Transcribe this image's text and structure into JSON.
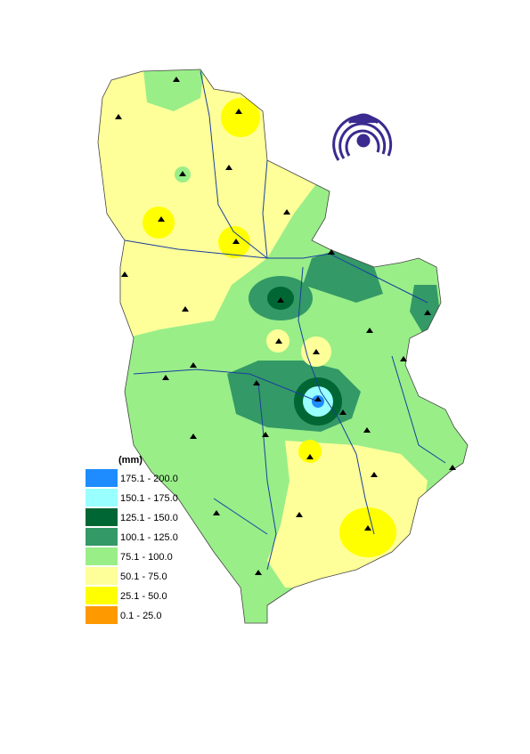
{
  "legend": {
    "title": "(mm)",
    "items": [
      {
        "label": "175.1 - 200.0",
        "color": "#1e8cff"
      },
      {
        "label": "150.1 - 175.0",
        "color": "#99ffff"
      },
      {
        "label": "125.1 - 150.0",
        "color": "#006633"
      },
      {
        "label": "100.1 - 125.0",
        "color": "#339966"
      },
      {
        "label": "75.1 - 100.0",
        "color": "#99ee88"
      },
      {
        "label": "50.1 - 75.0",
        "color": "#ffff99"
      },
      {
        "label": "25.1 - 50.0",
        "color": "#ffff00"
      },
      {
        "label": "0.1 - 25.0",
        "color": "#ff9900"
      }
    ]
  }
}
